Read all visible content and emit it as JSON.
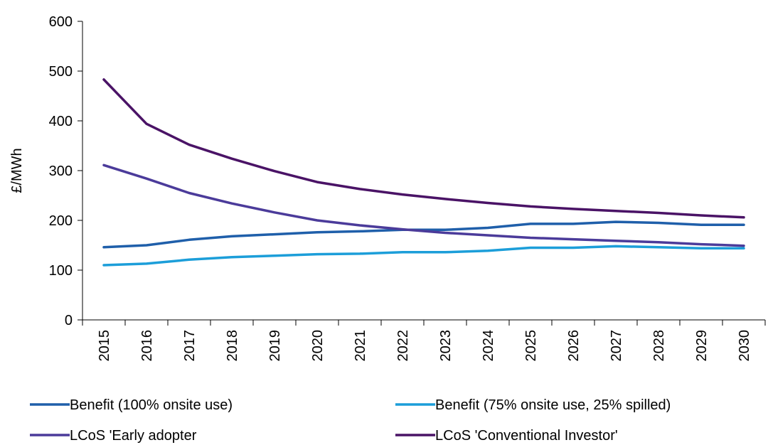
{
  "chart_data": {
    "type": "line",
    "title": "",
    "xlabel": "",
    "ylabel": "£/MWh",
    "ylim": [
      0,
      600
    ],
    "yticks": [
      0,
      100,
      200,
      300,
      400,
      500,
      600
    ],
    "grid": false,
    "legend_position": "bottom",
    "categories": [
      "2015",
      "2016",
      "2017",
      "2018",
      "2019",
      "2020",
      "2021",
      "2022",
      "2023",
      "2024",
      "2025",
      "2026",
      "2027",
      "2028",
      "2029",
      "2030"
    ],
    "series": [
      {
        "name": "Benefit (100% onsite use)",
        "color": "#1F5FAA",
        "values": [
          146,
          150,
          161,
          168,
          172,
          176,
          178,
          181,
          181,
          185,
          193,
          193,
          197,
          195,
          191,
          191
        ]
      },
      {
        "name": "Benefit (75% onsite use, 25% spilled)",
        "color": "#1C9ED9",
        "values": [
          110,
          113,
          121,
          126,
          129,
          132,
          133,
          136,
          136,
          139,
          145,
          145,
          148,
          146,
          144,
          144
        ]
      },
      {
        "name": "LCoS 'Early adopter",
        "color": "#4B3B9A",
        "values": [
          311,
          284,
          255,
          234,
          216,
          200,
          190,
          182,
          175,
          170,
          165,
          162,
          159,
          156,
          152,
          149
        ]
      },
      {
        "name": "LCoS 'Conventional Investor'",
        "color": "#4A1366",
        "values": [
          483,
          394,
          352,
          324,
          299,
          277,
          263,
          252,
          243,
          235,
          228,
          223,
          219,
          215,
          210,
          206
        ]
      }
    ]
  }
}
